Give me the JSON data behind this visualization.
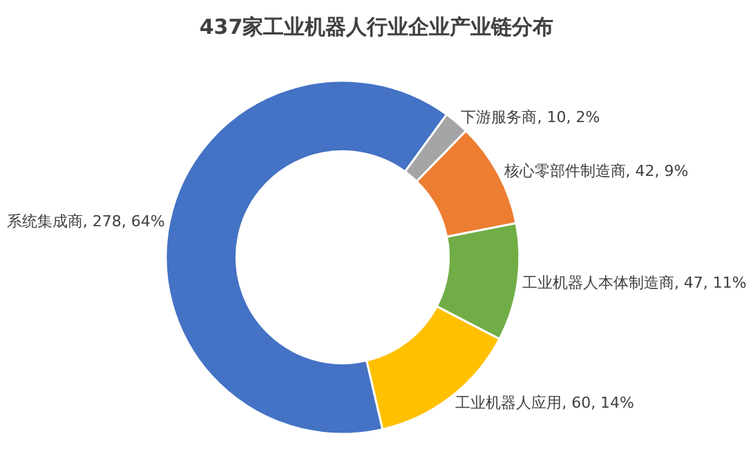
{
  "chart_data": {
    "type": "donut",
    "title": "437家工业机器人行业企业产业链分布",
    "categories": [
      "下游服务商",
      "核心零部件制造商",
      "工业机器人本体制造商",
      "工业机器人应用",
      "系统集成商"
    ],
    "values": [
      10,
      42,
      47,
      60,
      278
    ],
    "value_labels": [
      "10, 2%",
      "42, 9%",
      "47, 11%",
      "60, 14%",
      "278, 64%"
    ],
    "colors": [
      "#a5a5a5",
      "#ed7d31",
      "#70ad47",
      "#ffc000",
      "#4472c4"
    ],
    "legend": false
  }
}
